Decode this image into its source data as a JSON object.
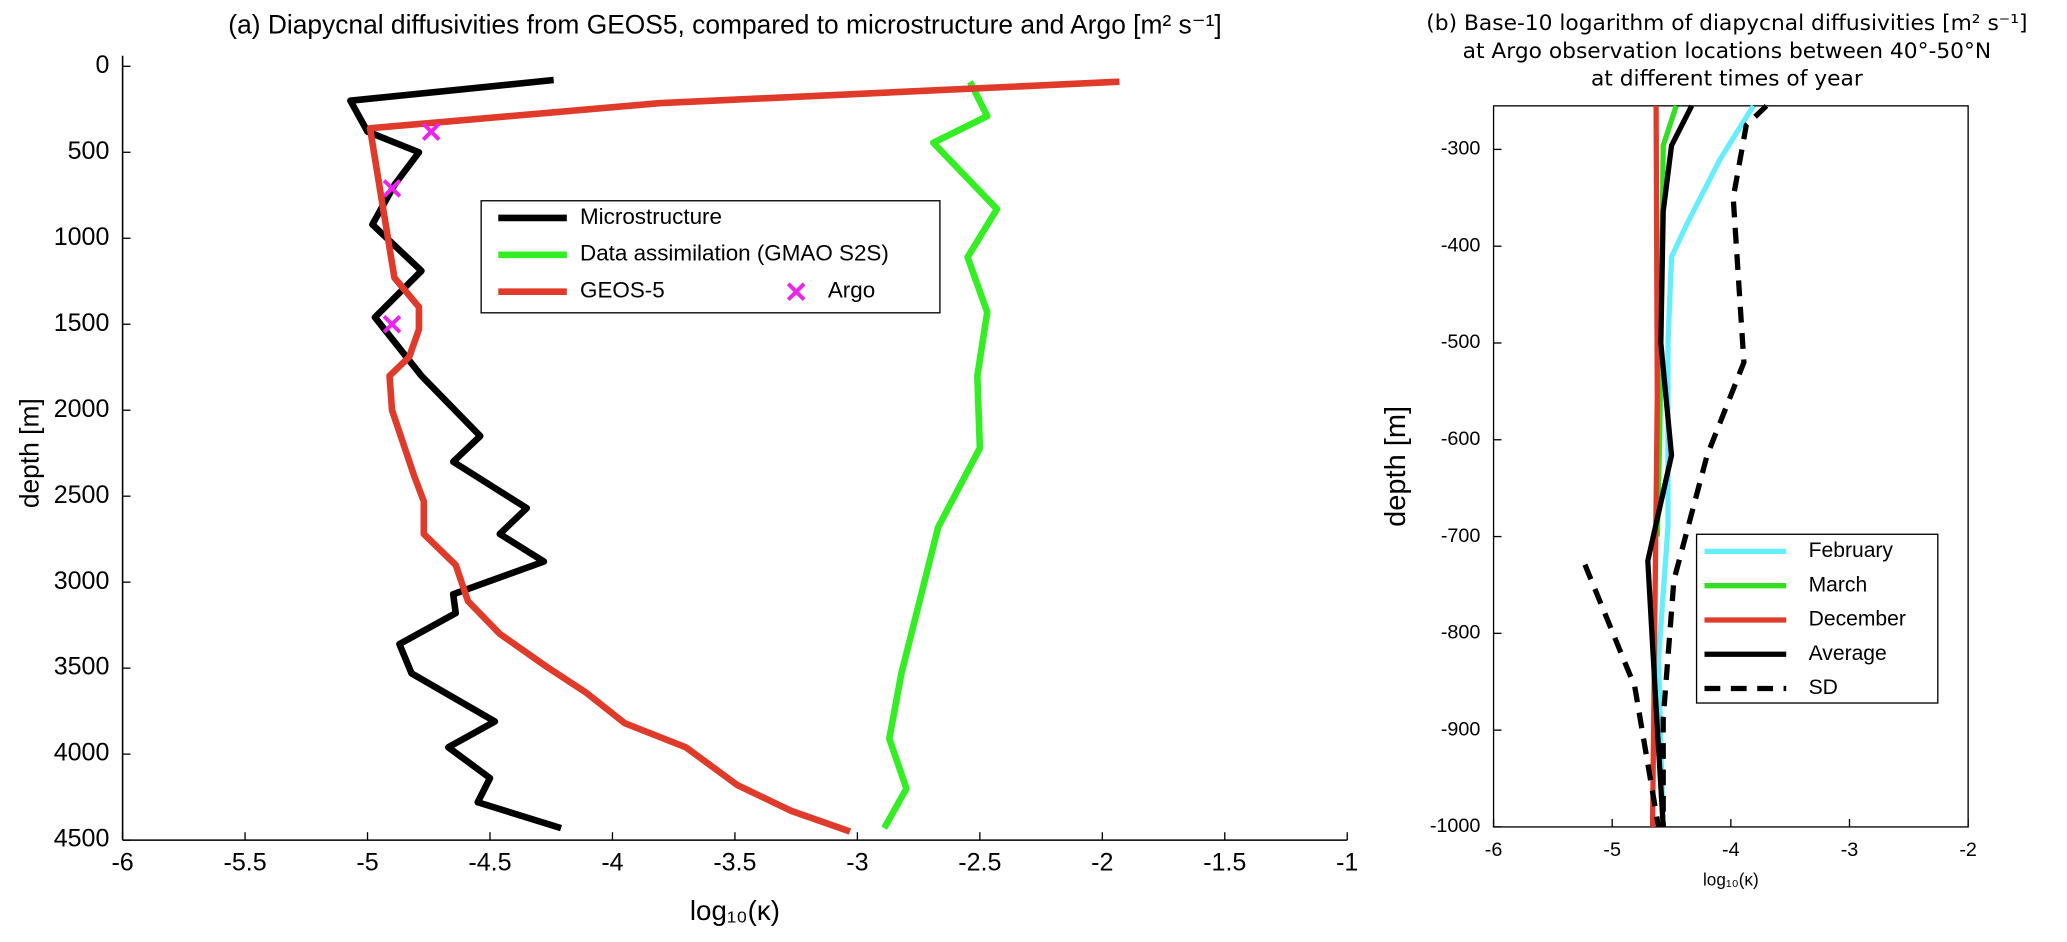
{
  "chart_data": [
    {
      "type": "line",
      "title": "(a) Diapycnal diffusivities from GEOS5, compared to microstructure and Argo [m² s⁻¹]",
      "x_label": "log₁₀(κ)",
      "y_label": "depth [m]",
      "xlim": [
        -6,
        -1
      ],
      "xticks": [
        -6,
        -5.5,
        -5,
        -4.5,
        -4,
        -3.5,
        -3,
        -2.5,
        -2,
        -1.5,
        -1
      ],
      "ylim": [
        0,
        4500
      ],
      "y_inverted": true,
      "yticks": [
        0,
        500,
        1000,
        1500,
        2000,
        2500,
        3000,
        3500,
        4000,
        4500
      ],
      "series": [
        {
          "name": "Microstructure",
          "color": "#000000",
          "values": [
            -4.24,
            -5.07,
            -5.0,
            -4.79,
            -4.89,
            -4.98,
            -4.78,
            -4.97,
            -4.78,
            -4.54,
            -4.65,
            -4.35,
            -4.46,
            -4.28,
            -4.65,
            -4.64,
            -4.87,
            -4.82,
            -4.48,
            -4.67,
            -4.5,
            -4.55,
            -4.21
          ],
          "depth": [
            80,
            200,
            380,
            500,
            690,
            920,
            1190,
            1460,
            1800,
            2150,
            2300,
            2570,
            2720,
            2880,
            3070,
            3180,
            3360,
            3530,
            3810,
            3960,
            4140,
            4280,
            4430
          ]
        },
        {
          "name": "Data assimilation (GMAO S2S)",
          "color": "#33ee22",
          "values": [
            -2.54,
            -2.47,
            -2.69,
            -2.43,
            -2.55,
            -2.47,
            -2.51,
            -2.5,
            -2.67,
            -2.82,
            -2.87,
            -2.8,
            -2.89
          ],
          "depth": [
            90,
            290,
            445,
            830,
            1110,
            1430,
            1800,
            2220,
            2680,
            3530,
            3910,
            4200,
            4430
          ]
        },
        {
          "name": "GEOS-5",
          "color": "#e03a2a",
          "values": [
            -1.93,
            -3.81,
            -4.99,
            -4.89,
            -4.79,
            -4.79,
            -4.83,
            -4.91,
            -4.9,
            -4.81,
            -4.77,
            -4.77,
            -4.64,
            -4.59,
            -4.46,
            -4.27,
            -4.11,
            -3.95,
            -3.7,
            -3.49,
            -3.27,
            -3.03
          ],
          "depth": [
            90,
            215,
            360,
            1230,
            1400,
            1530,
            1690,
            1800,
            2000,
            2380,
            2530,
            2720,
            2900,
            3110,
            3300,
            3490,
            3640,
            3820,
            3960,
            4180,
            4330,
            4450
          ]
        },
        {
          "name": "Argo",
          "color": "#ee22ee",
          "marker": "x",
          "values": [
            -4.74,
            -4.9,
            -4.9
          ],
          "depth": [
            380,
            710,
            1500
          ]
        }
      ]
    },
    {
      "type": "line",
      "title": [
        "(b) Base-10 logarithm of diapycnal diffusivities [m² s⁻¹]",
        "at Argo observation locations between 40°-50°N",
        "at different times of year"
      ],
      "x_label": "log₁₀(κ)",
      "y_label": "depth [m]",
      "xlim": [
        -6,
        -2
      ],
      "xticks": [
        -6,
        -5,
        -4,
        -3,
        -2
      ],
      "ylim": [
        -1000,
        -255
      ],
      "yticks": [
        -1000,
        -900,
        -800,
        -700,
        -600,
        -500,
        -400,
        -300
      ],
      "series": [
        {
          "name": "February",
          "color": "#66eeff",
          "values": [
            -3.81,
            -4.09,
            -4.37,
            -4.5,
            -4.53,
            -4.53,
            -4.61,
            -4.57
          ],
          "depth": [
            -255,
            -310,
            -377,
            -411,
            -500,
            -690,
            -827,
            -1000
          ]
        },
        {
          "name": "March",
          "color": "#33dd22",
          "values": [
            -4.46,
            -4.57,
            -4.58,
            -4.6,
            -4.62
          ],
          "depth": [
            -255,
            -296,
            -400,
            -600,
            -700
          ]
        },
        {
          "name": "December",
          "color": "#e03a2a",
          "values": [
            -4.63,
            -4.62,
            -4.66
          ],
          "depth": [
            -255,
            -554,
            -1000
          ]
        },
        {
          "name": "Average",
          "color": "#000000",
          "values": [
            -4.33,
            -4.5,
            -4.57,
            -4.59,
            -4.5,
            -4.7,
            -4.64,
            -4.57
          ],
          "depth": [
            -255,
            -296,
            -364,
            -500,
            -616,
            -725,
            -855,
            -1000
          ]
        },
        {
          "name": "SD",
          "color": "#000000",
          "style": "dashed",
          "values": [
            -3.7,
            -3.87,
            -3.98,
            -3.89,
            -4.2,
            -4.48,
            -4.57,
            -4.57,
            null,
            -5.23,
            -4.81,
            -4.61
          ],
          "depth": [
            -255,
            -275,
            -350,
            -520,
            -616,
            -745,
            -888,
            -1000,
            null,
            -729,
            -855,
            -1000
          ]
        }
      ]
    }
  ]
}
